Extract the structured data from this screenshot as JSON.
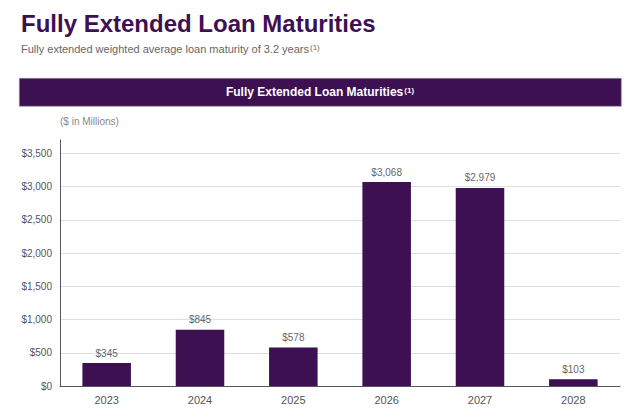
{
  "chart_data": {
    "type": "bar",
    "title": "Fully Extended Loan Maturities",
    "subtitle": "Fully extended weighted average loan maturity of 3.2 years",
    "subtitle_sup": "(1)",
    "annotations": [
      {
        "text": "Fully Extended Loan Maturities",
        "sup": "(1)"
      },
      {
        "text": "($ in Millions)"
      }
    ],
    "categories": [
      "2023",
      "2024",
      "2025",
      "2026",
      "2027",
      "2028"
    ],
    "values": [
      345,
      845,
      578,
      3068,
      2979,
      103
    ],
    "value_labels": [
      "$345",
      "$845",
      "$578",
      "$3,068",
      "$2,979",
      "$103"
    ],
    "data_labels": true,
    "color": "#3d1052",
    "ylim": [
      0,
      3700
    ],
    "yticks": [
      {
        "value": 0,
        "label": "$0"
      },
      {
        "value": 500,
        "label": "$500"
      },
      {
        "value": 1000,
        "label": "$1,000"
      },
      {
        "value": 1500,
        "label": "$1,500"
      },
      {
        "value": 2000,
        "label": "$2,000"
      },
      {
        "value": 2500,
        "label": "$2,500"
      },
      {
        "value": 3000,
        "label": "$3,000"
      },
      {
        "value": 3500,
        "label": "$3,500"
      }
    ],
    "grid": true
  }
}
